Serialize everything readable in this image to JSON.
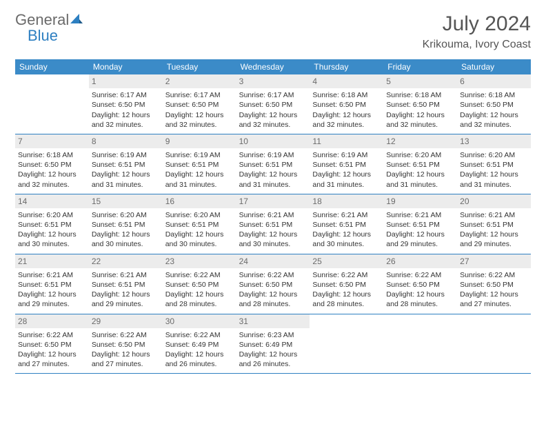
{
  "brand": {
    "first": "General",
    "second": "Blue"
  },
  "title": "July 2024",
  "location": "Krikouma, Ivory Coast",
  "colors": {
    "header_bg": "#3b8bc8",
    "accent": "#2d7fc1",
    "date_bg": "#ececec",
    "text": "#333333",
    "muted": "#6a6a6a"
  },
  "dayNames": [
    "Sunday",
    "Monday",
    "Tuesday",
    "Wednesday",
    "Thursday",
    "Friday",
    "Saturday"
  ],
  "weeks": [
    [
      null,
      {
        "d": "1",
        "sr": "6:17 AM",
        "ss": "6:50 PM",
        "dl": "12 hours and 32 minutes."
      },
      {
        "d": "2",
        "sr": "6:17 AM",
        "ss": "6:50 PM",
        "dl": "12 hours and 32 minutes."
      },
      {
        "d": "3",
        "sr": "6:17 AM",
        "ss": "6:50 PM",
        "dl": "12 hours and 32 minutes."
      },
      {
        "d": "4",
        "sr": "6:18 AM",
        "ss": "6:50 PM",
        "dl": "12 hours and 32 minutes."
      },
      {
        "d": "5",
        "sr": "6:18 AM",
        "ss": "6:50 PM",
        "dl": "12 hours and 32 minutes."
      },
      {
        "d": "6",
        "sr": "6:18 AM",
        "ss": "6:50 PM",
        "dl": "12 hours and 32 minutes."
      }
    ],
    [
      {
        "d": "7",
        "sr": "6:18 AM",
        "ss": "6:50 PM",
        "dl": "12 hours and 32 minutes."
      },
      {
        "d": "8",
        "sr": "6:19 AM",
        "ss": "6:51 PM",
        "dl": "12 hours and 31 minutes."
      },
      {
        "d": "9",
        "sr": "6:19 AM",
        "ss": "6:51 PM",
        "dl": "12 hours and 31 minutes."
      },
      {
        "d": "10",
        "sr": "6:19 AM",
        "ss": "6:51 PM",
        "dl": "12 hours and 31 minutes."
      },
      {
        "d": "11",
        "sr": "6:19 AM",
        "ss": "6:51 PM",
        "dl": "12 hours and 31 minutes."
      },
      {
        "d": "12",
        "sr": "6:20 AM",
        "ss": "6:51 PM",
        "dl": "12 hours and 31 minutes."
      },
      {
        "d": "13",
        "sr": "6:20 AM",
        "ss": "6:51 PM",
        "dl": "12 hours and 31 minutes."
      }
    ],
    [
      {
        "d": "14",
        "sr": "6:20 AM",
        "ss": "6:51 PM",
        "dl": "12 hours and 30 minutes."
      },
      {
        "d": "15",
        "sr": "6:20 AM",
        "ss": "6:51 PM",
        "dl": "12 hours and 30 minutes."
      },
      {
        "d": "16",
        "sr": "6:20 AM",
        "ss": "6:51 PM",
        "dl": "12 hours and 30 minutes."
      },
      {
        "d": "17",
        "sr": "6:21 AM",
        "ss": "6:51 PM",
        "dl": "12 hours and 30 minutes."
      },
      {
        "d": "18",
        "sr": "6:21 AM",
        "ss": "6:51 PM",
        "dl": "12 hours and 30 minutes."
      },
      {
        "d": "19",
        "sr": "6:21 AM",
        "ss": "6:51 PM",
        "dl": "12 hours and 29 minutes."
      },
      {
        "d": "20",
        "sr": "6:21 AM",
        "ss": "6:51 PM",
        "dl": "12 hours and 29 minutes."
      }
    ],
    [
      {
        "d": "21",
        "sr": "6:21 AM",
        "ss": "6:51 PM",
        "dl": "12 hours and 29 minutes."
      },
      {
        "d": "22",
        "sr": "6:21 AM",
        "ss": "6:51 PM",
        "dl": "12 hours and 29 minutes."
      },
      {
        "d": "23",
        "sr": "6:22 AM",
        "ss": "6:50 PM",
        "dl": "12 hours and 28 minutes."
      },
      {
        "d": "24",
        "sr": "6:22 AM",
        "ss": "6:50 PM",
        "dl": "12 hours and 28 minutes."
      },
      {
        "d": "25",
        "sr": "6:22 AM",
        "ss": "6:50 PM",
        "dl": "12 hours and 28 minutes."
      },
      {
        "d": "26",
        "sr": "6:22 AM",
        "ss": "6:50 PM",
        "dl": "12 hours and 28 minutes."
      },
      {
        "d": "27",
        "sr": "6:22 AM",
        "ss": "6:50 PM",
        "dl": "12 hours and 27 minutes."
      }
    ],
    [
      {
        "d": "28",
        "sr": "6:22 AM",
        "ss": "6:50 PM",
        "dl": "12 hours and 27 minutes."
      },
      {
        "d": "29",
        "sr": "6:22 AM",
        "ss": "6:50 PM",
        "dl": "12 hours and 27 minutes."
      },
      {
        "d": "30",
        "sr": "6:22 AM",
        "ss": "6:49 PM",
        "dl": "12 hours and 26 minutes."
      },
      {
        "d": "31",
        "sr": "6:23 AM",
        "ss": "6:49 PM",
        "dl": "12 hours and 26 minutes."
      },
      null,
      null,
      null
    ]
  ],
  "labels": {
    "sunrise": "Sunrise:",
    "sunset": "Sunset:",
    "daylight": "Daylight:"
  }
}
